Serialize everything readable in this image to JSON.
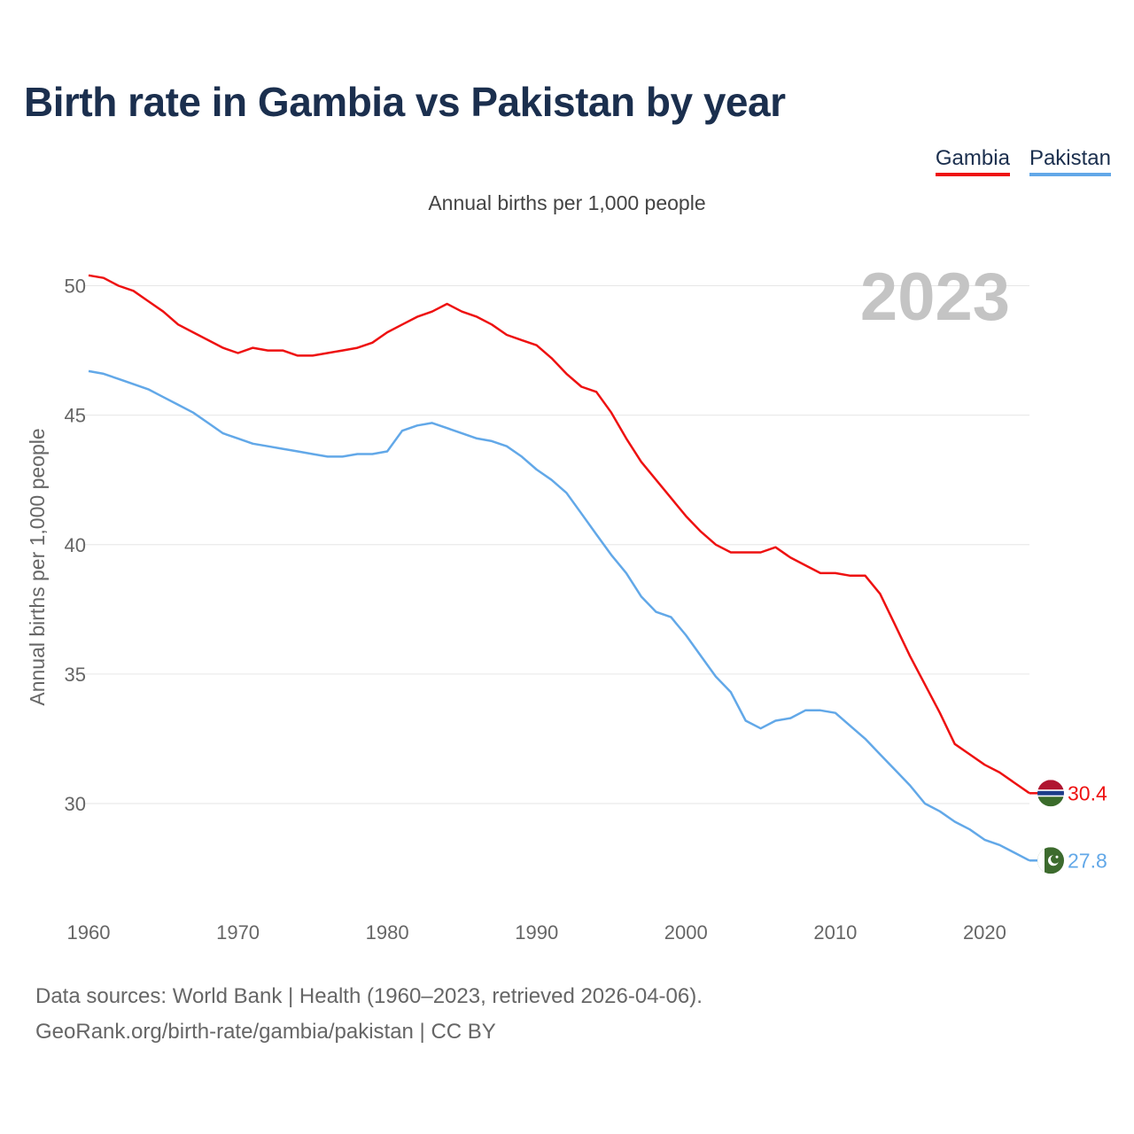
{
  "title": "Birth rate in Gambia vs Pakistan by year",
  "subtitle": "Annual births per 1,000 people",
  "legend": [
    "Gambia",
    "Pakistan"
  ],
  "year_badge": "2023",
  "footer": {
    "line1": "Data sources: World Bank | Health (1960–2023, retrieved 2026-04-06).",
    "line2": "GeoRank.org/birth-rate/gambia/pakistan | CC BY"
  },
  "colors": {
    "gambia": "#ee1111",
    "pakistan": "#62a8e8",
    "title": "#1b2f4e",
    "grid": "#e6e6e6",
    "badge": "#c4c4c4"
  },
  "chart_data": {
    "type": "line",
    "title": "Birth rate in Gambia vs Pakistan by year",
    "ylabel": "Annual births per 1,000 people",
    "xlabel": "",
    "xlim": [
      1960,
      2023
    ],
    "ylim": [
      26.5,
      51
    ],
    "xticks": [
      1960,
      1970,
      1980,
      1990,
      2000,
      2010,
      2020
    ],
    "yticks": [
      30,
      35,
      40,
      45,
      50
    ],
    "x": [
      1960,
      1961,
      1962,
      1963,
      1964,
      1965,
      1966,
      1967,
      1968,
      1969,
      1970,
      1971,
      1972,
      1973,
      1974,
      1975,
      1976,
      1977,
      1978,
      1979,
      1980,
      1981,
      1982,
      1983,
      1984,
      1985,
      1986,
      1987,
      1988,
      1989,
      1990,
      1991,
      1992,
      1993,
      1994,
      1995,
      1996,
      1997,
      1998,
      1999,
      2000,
      2001,
      2002,
      2003,
      2004,
      2005,
      2006,
      2007,
      2008,
      2009,
      2010,
      2011,
      2012,
      2013,
      2014,
      2015,
      2016,
      2017,
      2018,
      2019,
      2020,
      2021,
      2022,
      2023
    ],
    "series": [
      {
        "name": "Gambia",
        "end_label": "30.4",
        "values": [
          50.4,
          50.3,
          50.0,
          49.8,
          49.4,
          49.0,
          48.5,
          48.2,
          47.9,
          47.6,
          47.4,
          47.6,
          47.5,
          47.5,
          47.3,
          47.3,
          47.4,
          47.5,
          47.6,
          47.8,
          48.2,
          48.5,
          48.8,
          49.0,
          49.3,
          49.0,
          48.8,
          48.5,
          48.1,
          47.9,
          47.7,
          47.2,
          46.6,
          46.1,
          45.9,
          45.1,
          44.1,
          43.2,
          42.5,
          41.8,
          41.1,
          40.5,
          40.0,
          39.7,
          39.7,
          39.7,
          39.9,
          39.5,
          39.2,
          38.9,
          38.9,
          38.8,
          38.8,
          38.1,
          36.9,
          35.7,
          34.6,
          33.5,
          32.3,
          31.9,
          31.5,
          31.2,
          30.8,
          30.4
        ]
      },
      {
        "name": "Pakistan",
        "end_label": "27.8",
        "values": [
          46.7,
          46.6,
          46.4,
          46.2,
          46.0,
          45.7,
          45.4,
          45.1,
          44.7,
          44.3,
          44.1,
          43.9,
          43.8,
          43.7,
          43.6,
          43.5,
          43.4,
          43.4,
          43.5,
          43.5,
          43.6,
          44.4,
          44.6,
          44.7,
          44.5,
          44.3,
          44.1,
          44.0,
          43.8,
          43.4,
          42.9,
          42.5,
          42.0,
          41.2,
          40.4,
          39.6,
          38.9,
          38.0,
          37.4,
          37.2,
          36.5,
          35.7,
          34.9,
          34.3,
          33.2,
          32.9,
          33.2,
          33.3,
          33.6,
          33.6,
          33.5,
          33.0,
          32.5,
          31.9,
          31.3,
          30.7,
          30.0,
          29.7,
          29.3,
          29.0,
          28.6,
          28.4,
          28.1,
          27.8
        ]
      }
    ]
  }
}
